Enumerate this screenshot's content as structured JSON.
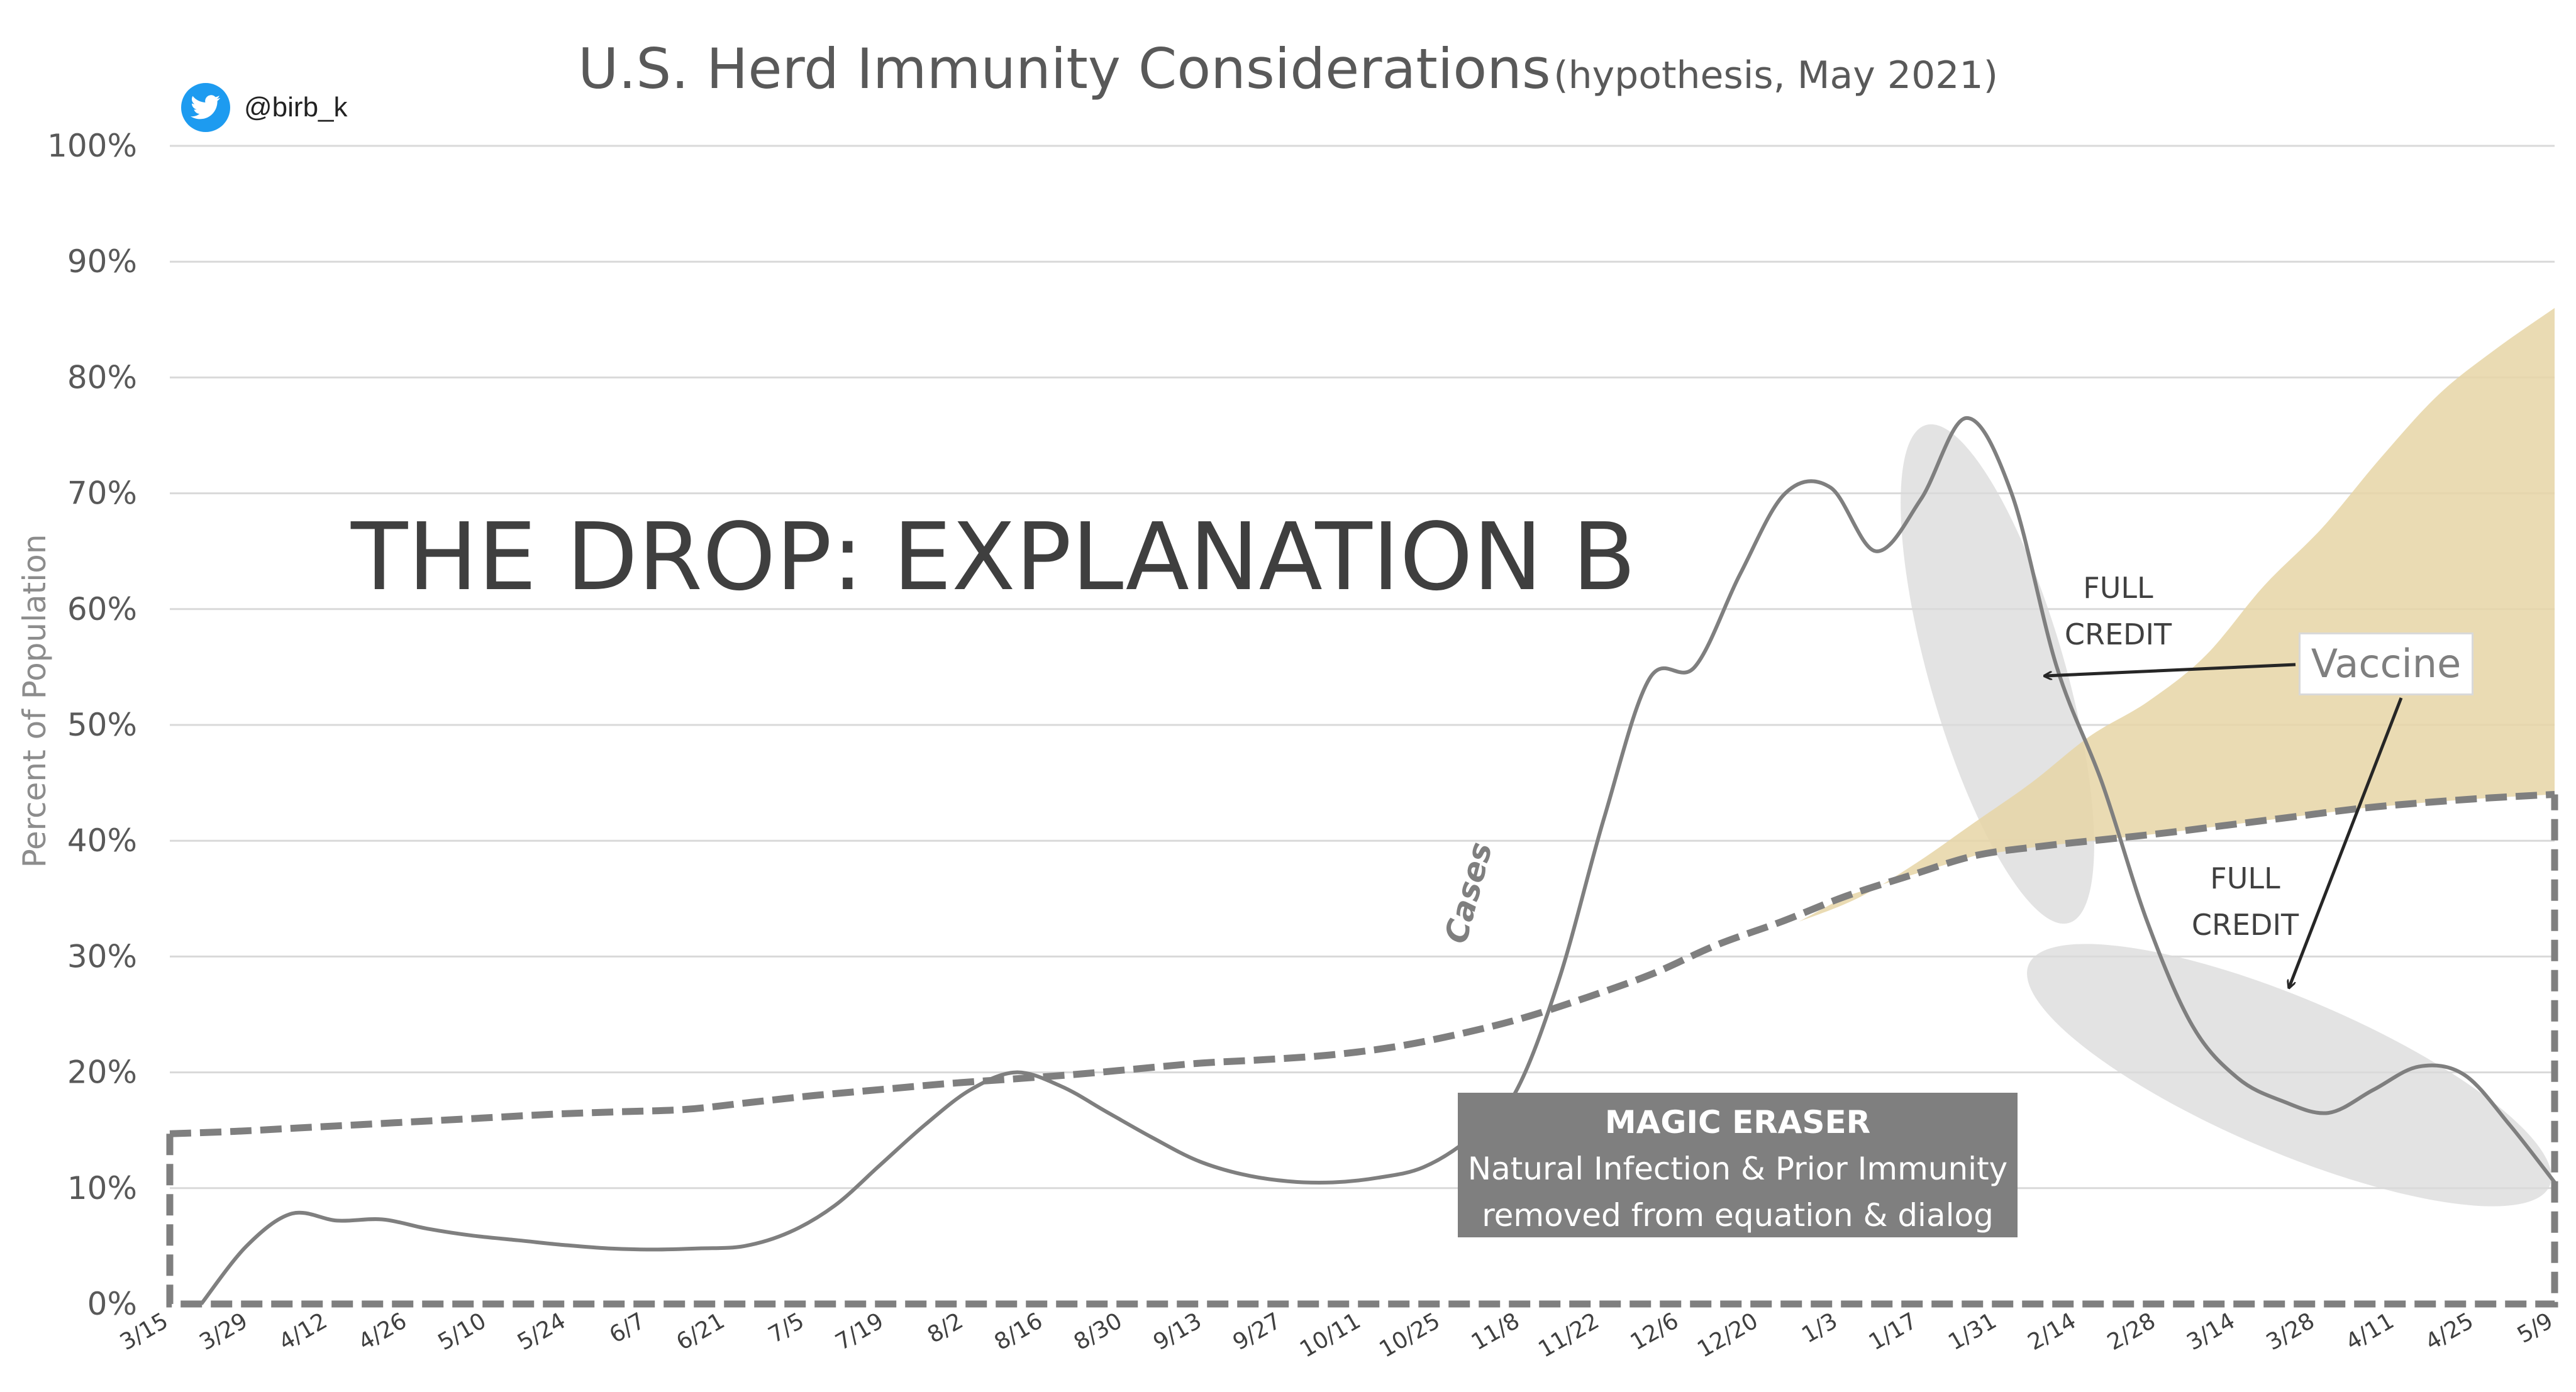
{
  "header": {
    "handle": "@birb_k",
    "handle_icon": "twitter-bird-icon",
    "title": "U.S. Herd Immunity Considerations",
    "subtitle": "(hypothesis, May 2021)"
  },
  "annotations": {
    "headline": "THE DROP: EXPLANATION B",
    "magic_eraser_title": "MAGIC ERASER",
    "magic_eraser_line1": "Natural Infection & Prior Immunity",
    "magic_eraser_line2": "removed from equation & dialog",
    "vaccine_label": "Vaccine",
    "full_credit_upper": "FULL\nCREDIT",
    "full_credit_lower": "FULL\nCREDIT",
    "cases_label": "Cases"
  },
  "colors": {
    "cases_line": "#7f7f7f",
    "dashed_line": "#7f7f7f",
    "vaccine_fill": "#e6d5a6",
    "highlight_ellipse": "#d9d9d9",
    "grid": "#d9d9d9",
    "eraser_box": "#7f7f7f",
    "twitter_blue": "#1d9bf0"
  },
  "chart_data": {
    "type": "line",
    "title": "U.S. Herd Immunity Considerations",
    "subtitle": "(hypothesis, May 2021)",
    "ylabel": "Percent of Population",
    "xlabel": "",
    "ylim": [
      0,
      100
    ],
    "y_ticks": [
      "0%",
      "10%",
      "20%",
      "30%",
      "40%",
      "50%",
      "60%",
      "70%",
      "80%",
      "90%",
      "100%"
    ],
    "x_tick_labels": [
      "3/15",
      "3/29",
      "4/12",
      "4/26",
      "5/10",
      "5/24",
      "6/7",
      "6/21",
      "7/5",
      "7/19",
      "8/2",
      "8/16",
      "8/30",
      "9/13",
      "9/27",
      "10/11",
      "10/25",
      "11/8",
      "11/22",
      "12/6",
      "12/20",
      "1/3",
      "1/17",
      "1/31",
      "2/14",
      "2/28",
      "3/14",
      "3/28",
      "4/11",
      "4/25",
      "5/9"
    ],
    "grid": true,
    "legend": "none",
    "series": [
      {
        "name": "Cases",
        "style": "solid",
        "values": [
          0,
          5,
          7.8,
          7.2,
          7.3,
          6.5,
          5.9,
          5.5,
          5.1,
          4.8,
          4.7,
          4.8,
          5,
          6.2,
          8.5,
          12,
          15.5,
          18.5,
          20,
          18.8,
          16.6,
          14.4,
          12.4,
          11.2,
          10.6,
          10.5,
          10.9,
          11.8,
          14.2,
          18,
          28,
          42,
          54,
          55,
          63,
          70,
          70.5,
          65,
          69.5,
          76.5,
          70,
          55,
          45,
          33,
          24,
          19.5,
          17.5,
          16.5,
          18.5,
          20.5,
          19.8,
          15.5,
          10.5
        ]
      },
      {
        "name": "",
        "style": "dashed",
        "values": [
          14.7,
          14.9,
          15.2,
          15.5,
          15.8,
          16.1,
          16.4,
          16.6,
          16.8,
          17.4,
          18,
          18.5,
          19,
          19.4,
          19.8,
          20.3,
          20.8,
          21.1,
          21.5,
          22.2,
          23.3,
          24.7,
          26.5,
          28.5,
          31,
          33,
          35.2,
          37,
          38.7,
          39.5,
          40.1,
          40.7,
          41.4,
          42.1,
          42.8,
          43.3,
          43.7,
          44
        ]
      },
      {
        "name": "Vaccine",
        "style": "area",
        "values": [
          33,
          35,
          38,
          41.5,
          45,
          49,
          52,
          56,
          62,
          67,
          73,
          78.5,
          82.5,
          86
        ]
      }
    ]
  }
}
